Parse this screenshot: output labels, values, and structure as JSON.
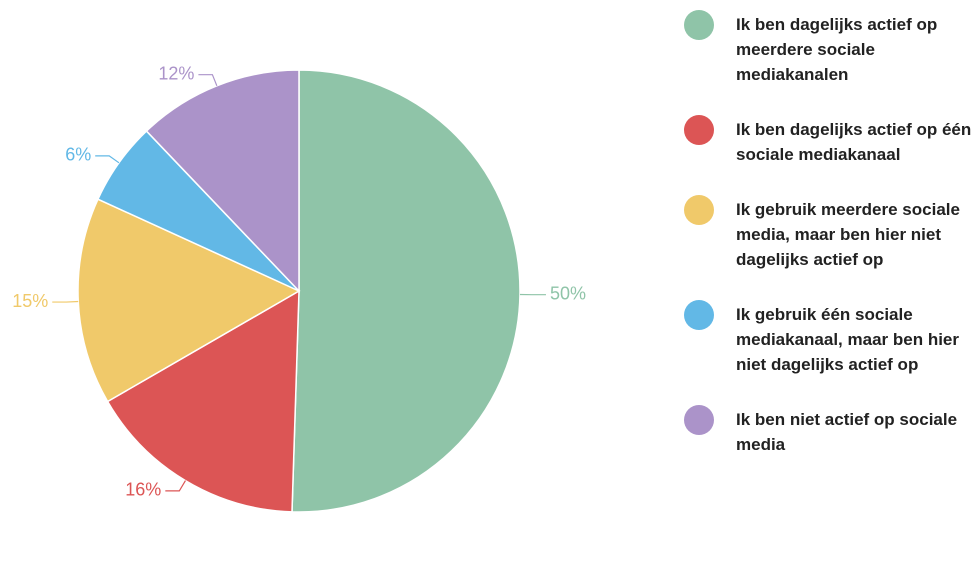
{
  "chart_data": {
    "type": "pie",
    "categories": [
      "Ik ben dagelijks actief op meerdere sociale mediakanalen",
      "Ik ben dagelijks actief op één sociale mediakanaal",
      "Ik gebruik meerdere sociale media, maar ben hier niet dagelijks actief op",
      "Ik gebruik één sociale mediakanaal, maar ben hier niet dagelijks actief op",
      "Ik ben niet actief op sociale media"
    ],
    "values": [
      50,
      16,
      15,
      6,
      12
    ],
    "value_labels": [
      "50%",
      "16%",
      "15%",
      "6%",
      "12%"
    ],
    "colors": [
      "#8fc4a8",
      "#dc5555",
      "#f0c96a",
      "#62b8e6",
      "#ab93c9"
    ]
  }
}
